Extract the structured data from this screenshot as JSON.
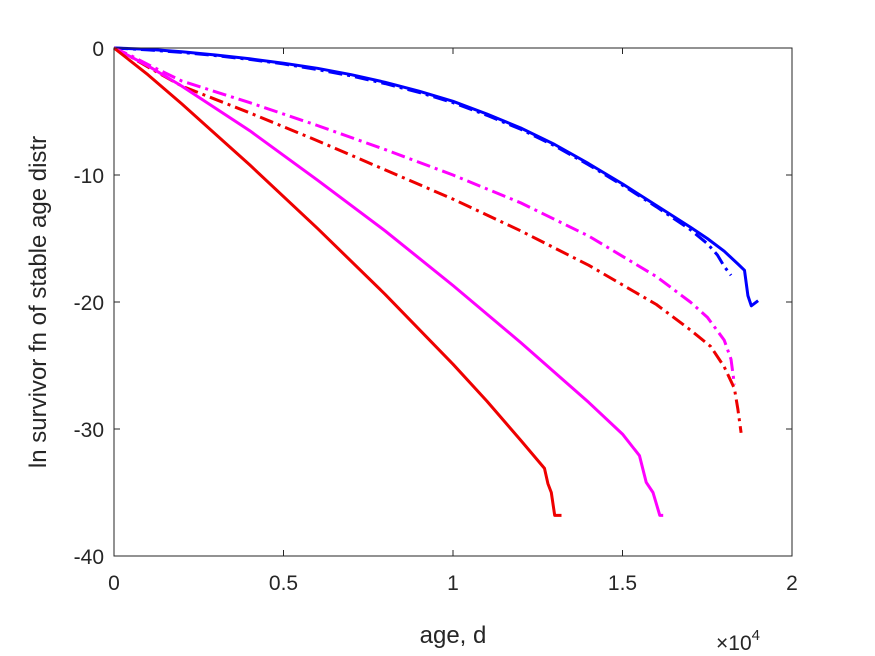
{
  "chart_data": {
    "type": "line",
    "title": "",
    "xlabel": "age, d",
    "ylabel": "ln survivor fn of stable age distr",
    "xlim": [
      0,
      2
    ],
    "ylim": [
      -40,
      0
    ],
    "x_scale_factor_text": "×10",
    "x_scale_factor_exponent": "4",
    "xticks": [
      0,
      0.5,
      1,
      1.5,
      2
    ],
    "xtick_labels": [
      "0",
      "0.5",
      "1",
      "1.5",
      "2"
    ],
    "yticks": [
      0,
      -10,
      -20,
      -30,
      -40
    ],
    "ytick_labels": [
      "0",
      "-10",
      "-20",
      "-30",
      "-40"
    ],
    "grid": false,
    "box": true,
    "series": [
      {
        "color": "#0000ff",
        "dash": "solid",
        "x": [
          0,
          0.1,
          0.2,
          0.3,
          0.4,
          0.5,
          0.6,
          0.7,
          0.8,
          0.9,
          1.0,
          1.1,
          1.2,
          1.3,
          1.4,
          1.5,
          1.6,
          1.7,
          1.75,
          1.8,
          1.84,
          1.86,
          1.87,
          1.88,
          1.9
        ],
        "y": [
          0,
          -0.1,
          -0.3,
          -0.55,
          -0.85,
          -1.2,
          -1.6,
          -2.1,
          -2.7,
          -3.4,
          -4.2,
          -5.2,
          -6.3,
          -7.6,
          -9.1,
          -10.7,
          -12.4,
          -14.1,
          -15.0,
          -16.0,
          -17.0,
          -17.5,
          -19.5,
          -20.3,
          -19.9
        ]
      },
      {
        "color": "#0000ff",
        "dash": "dashdot",
        "x": [
          0,
          0.1,
          0.2,
          0.3,
          0.4,
          0.5,
          0.6,
          0.7,
          0.8,
          0.9,
          1.0,
          1.1,
          1.2,
          1.3,
          1.4,
          1.5,
          1.6,
          1.7,
          1.75,
          1.78,
          1.8,
          1.82
        ],
        "y": [
          0,
          -0.15,
          -0.35,
          -0.6,
          -0.9,
          -1.25,
          -1.7,
          -2.2,
          -2.8,
          -3.5,
          -4.3,
          -5.3,
          -6.4,
          -7.7,
          -9.2,
          -10.8,
          -12.5,
          -14.3,
          -15.4,
          -16.3,
          -17.2,
          -17.9
        ]
      },
      {
        "color": "#ff00ff",
        "dash": "dashdot",
        "x": [
          0,
          0.05,
          0.1,
          0.2,
          0.4,
          0.6,
          0.8,
          1.0,
          1.2,
          1.4,
          1.6,
          1.7,
          1.75,
          1.8,
          1.82,
          1.83
        ],
        "y": [
          0,
          -0.6,
          -1.3,
          -2.6,
          -4.3,
          -6.1,
          -8.0,
          -10.0,
          -12.2,
          -14.8,
          -18.0,
          -20.0,
          -21.2,
          -23.0,
          -24.5,
          -26.5
        ]
      },
      {
        "color": "#ee0000",
        "dash": "dashdot",
        "x": [
          0,
          0.05,
          0.1,
          0.2,
          0.4,
          0.6,
          0.8,
          1.0,
          1.2,
          1.4,
          1.6,
          1.7,
          1.76,
          1.8,
          1.83,
          1.84,
          1.85
        ],
        "y": [
          0,
          -0.7,
          -1.5,
          -3.0,
          -5.1,
          -7.3,
          -9.6,
          -11.9,
          -14.4,
          -17.1,
          -20.2,
          -22.2,
          -23.5,
          -25.1,
          -26.8,
          -28.4,
          -30.3
        ]
      },
      {
        "color": "#ff00ff",
        "dash": "solid",
        "x": [
          0,
          0.1,
          0.2,
          0.4,
          0.6,
          0.8,
          1.0,
          1.2,
          1.4,
          1.5,
          1.55,
          1.57,
          1.59,
          1.61,
          1.62
        ],
        "y": [
          0,
          -1.4,
          -3.0,
          -6.5,
          -10.4,
          -14.4,
          -18.7,
          -23.2,
          -27.9,
          -30.4,
          -32.1,
          -34.2,
          -35.0,
          -36.8,
          -36.8
        ]
      },
      {
        "color": "#ee0000",
        "dash": "solid",
        "x": [
          0,
          0.1,
          0.2,
          0.4,
          0.6,
          0.8,
          1.0,
          1.1,
          1.2,
          1.27,
          1.28,
          1.29,
          1.3,
          1.32
        ],
        "y": [
          0,
          -2.1,
          -4.4,
          -9.2,
          -14.2,
          -19.4,
          -24.9,
          -27.8,
          -30.9,
          -33.1,
          -34.3,
          -35.0,
          -36.8,
          -36.8
        ]
      }
    ]
  }
}
